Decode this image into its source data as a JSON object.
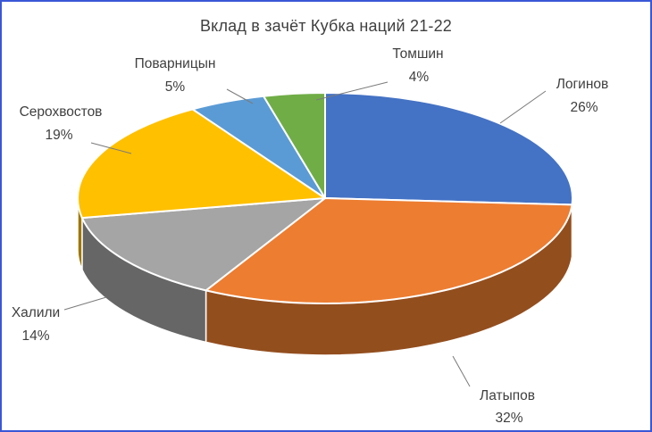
{
  "frame": {
    "background": "#ffffff",
    "border_color": "#3A57D6"
  },
  "chart_data": {
    "type": "pie",
    "style": "3d",
    "title": "Вклад в зачёт Кубка наций 21-22",
    "direction": "clockwise",
    "start_angle_deg": 0,
    "unit": "%",
    "labels": [
      "Логинов",
      "Латыпов",
      "Халили",
      "Серохвостов",
      "Поварницын",
      "Томшин"
    ],
    "values": [
      26,
      32,
      14,
      19,
      5,
      4
    ],
    "value_labels": [
      "26%",
      "32%",
      "14%",
      "19%",
      "5%",
      "4%"
    ],
    "colors": [
      "#4472C4",
      "#ED7D31",
      "#A5A5A5",
      "#FFC000",
      "#5B9BD5",
      "#70AD47"
    ],
    "legend": "none",
    "text_color": "#3F3F3F",
    "leader_line_color": "#7B7B7B"
  }
}
